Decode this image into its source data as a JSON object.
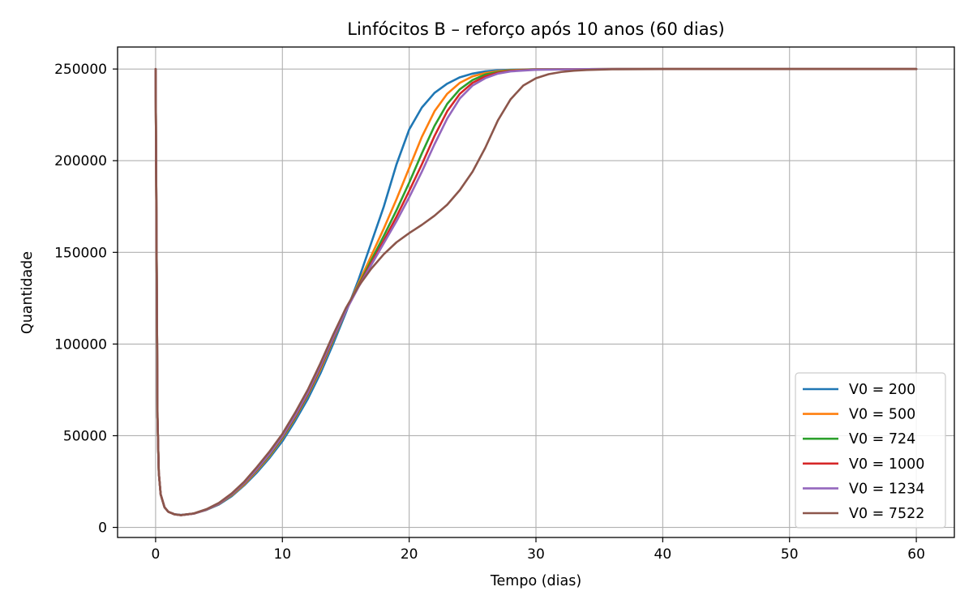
{
  "chart_data": {
    "type": "line",
    "title": "Linfócitos B – reforço após 10 anos (60 dias)",
    "xlabel": "Tempo (dias)",
    "ylabel": "Quantidade",
    "xlim": [
      -3,
      63
    ],
    "ylim": [
      -5500,
      262000
    ],
    "xticks": [
      0,
      10,
      20,
      30,
      40,
      50,
      60
    ],
    "xtick_labels": [
      "0",
      "10",
      "20",
      "30",
      "40",
      "50",
      "60"
    ],
    "yticks": [
      0,
      50000,
      100000,
      150000,
      200000,
      250000
    ],
    "ytick_labels": [
      "0",
      "50000",
      "100000",
      "150000",
      "200000",
      "250000"
    ],
    "grid": true,
    "legend_position": "lower-right",
    "series": [
      {
        "name": "V0 = 200",
        "color": "#1f77b4",
        "points": [
          [
            0,
            250000
          ],
          [
            0.08,
            150000
          ],
          [
            0.15,
            60000
          ],
          [
            0.25,
            30000
          ],
          [
            0.4,
            18000
          ],
          [
            0.7,
            11000
          ],
          [
            1,
            8500
          ],
          [
            1.5,
            7200
          ],
          [
            2,
            6800
          ],
          [
            3,
            7500
          ],
          [
            4,
            9500
          ],
          [
            5,
            12500
          ],
          [
            6,
            17000
          ],
          [
            7,
            23000
          ],
          [
            8,
            30000
          ],
          [
            9,
            38000
          ],
          [
            10,
            47000
          ],
          [
            11,
            58000
          ],
          [
            12,
            70000
          ],
          [
            13,
            84000
          ],
          [
            14,
            100000
          ],
          [
            15,
            117000
          ],
          [
            16,
            135000
          ],
          [
            17,
            155000
          ],
          [
            18,
            175000
          ],
          [
            19,
            198000
          ],
          [
            20,
            217000
          ],
          [
            21,
            229000
          ],
          [
            22,
            237000
          ],
          [
            23,
            242000
          ],
          [
            24,
            245500
          ],
          [
            25,
            247500
          ],
          [
            26,
            248700
          ],
          [
            27,
            249300
          ],
          [
            28,
            249600
          ],
          [
            30,
            249850
          ],
          [
            33,
            249950
          ],
          [
            40,
            250000
          ],
          [
            60,
            250000
          ]
        ]
      },
      {
        "name": "V0 = 500",
        "color": "#ff7f0e",
        "points": [
          [
            0,
            250000
          ],
          [
            0.08,
            150000
          ],
          [
            0.15,
            60000
          ],
          [
            0.25,
            30000
          ],
          [
            0.4,
            18000
          ],
          [
            0.7,
            11000
          ],
          [
            1,
            8500
          ],
          [
            1.5,
            7100
          ],
          [
            2,
            6700
          ],
          [
            3,
            7500
          ],
          [
            4,
            9600
          ],
          [
            5,
            12800
          ],
          [
            6,
            17500
          ],
          [
            7,
            23500
          ],
          [
            8,
            31000
          ],
          [
            9,
            39000
          ],
          [
            10,
            48500
          ],
          [
            11,
            59500
          ],
          [
            12,
            72000
          ],
          [
            13,
            86000
          ],
          [
            14,
            102000
          ],
          [
            15,
            118000
          ],
          [
            16,
            133000
          ],
          [
            17,
            148000
          ],
          [
            18,
            163000
          ],
          [
            19,
            179000
          ],
          [
            20,
            196000
          ],
          [
            21,
            213000
          ],
          [
            22,
            227000
          ],
          [
            23,
            236500
          ],
          [
            24,
            242500
          ],
          [
            25,
            246000
          ],
          [
            26,
            247800
          ],
          [
            27,
            248800
          ],
          [
            28,
            249400
          ],
          [
            30,
            249800
          ],
          [
            34,
            249950
          ],
          [
            40,
            250000
          ],
          [
            60,
            250000
          ]
        ]
      },
      {
        "name": "V0 = 724",
        "color": "#2ca02c",
        "points": [
          [
            0,
            250000
          ],
          [
            0.08,
            150000
          ],
          [
            0.15,
            60000
          ],
          [
            0.25,
            30000
          ],
          [
            0.4,
            18000
          ],
          [
            0.7,
            11000
          ],
          [
            1,
            8500
          ],
          [
            1.5,
            7100
          ],
          [
            2,
            6700
          ],
          [
            3,
            7500
          ],
          [
            4,
            9700
          ],
          [
            5,
            13000
          ],
          [
            6,
            17800
          ],
          [
            7,
            24000
          ],
          [
            8,
            31500
          ],
          [
            9,
            39500
          ],
          [
            10,
            49000
          ],
          [
            11,
            60000
          ],
          [
            12,
            72500
          ],
          [
            13,
            87000
          ],
          [
            14,
            102500
          ],
          [
            15,
            118000
          ],
          [
            16,
            132000
          ],
          [
            17,
            145500
          ],
          [
            18,
            159000
          ],
          [
            19,
            173000
          ],
          [
            20,
            188000
          ],
          [
            21,
            204000
          ],
          [
            22,
            219000
          ],
          [
            23,
            231000
          ],
          [
            24,
            239000
          ],
          [
            25,
            244000
          ],
          [
            26,
            247000
          ],
          [
            27,
            248400
          ],
          [
            28,
            249200
          ],
          [
            30,
            249750
          ],
          [
            34,
            249950
          ],
          [
            40,
            250000
          ],
          [
            60,
            250000
          ]
        ]
      },
      {
        "name": "V0 = 1000",
        "color": "#d62728",
        "points": [
          [
            0,
            250000
          ],
          [
            0.08,
            150000
          ],
          [
            0.15,
            60000
          ],
          [
            0.25,
            30000
          ],
          [
            0.4,
            18000
          ],
          [
            0.7,
            11000
          ],
          [
            1,
            8500
          ],
          [
            1.5,
            7100
          ],
          [
            2,
            6700
          ],
          [
            3,
            7500
          ],
          [
            4,
            9700
          ],
          [
            5,
            13000
          ],
          [
            6,
            18000
          ],
          [
            7,
            24200
          ],
          [
            8,
            31800
          ],
          [
            9,
            40000
          ],
          [
            10,
            49500
          ],
          [
            11,
            60500
          ],
          [
            12,
            73000
          ],
          [
            13,
            87500
          ],
          [
            14,
            103000
          ],
          [
            15,
            118000
          ],
          [
            16,
            131500
          ],
          [
            17,
            144000
          ],
          [
            18,
            156500
          ],
          [
            19,
            169500
          ],
          [
            20,
            183500
          ],
          [
            21,
            198000
          ],
          [
            22,
            213500
          ],
          [
            23,
            227000
          ],
          [
            24,
            236500
          ],
          [
            25,
            242500
          ],
          [
            26,
            246000
          ],
          [
            27,
            248000
          ],
          [
            28,
            249000
          ],
          [
            30,
            249700
          ],
          [
            34,
            249950
          ],
          [
            40,
            250000
          ],
          [
            60,
            250000
          ]
        ]
      },
      {
        "name": "V0 = 1234",
        "color": "#9467bd",
        "points": [
          [
            0,
            250000
          ],
          [
            0.08,
            150000
          ],
          [
            0.15,
            60000
          ],
          [
            0.25,
            30000
          ],
          [
            0.4,
            18000
          ],
          [
            0.7,
            11000
          ],
          [
            1,
            8500
          ],
          [
            1.5,
            7100
          ],
          [
            2,
            6700
          ],
          [
            3,
            7500
          ],
          [
            4,
            9700
          ],
          [
            5,
            13100
          ],
          [
            6,
            18100
          ],
          [
            7,
            24400
          ],
          [
            8,
            32000
          ],
          [
            9,
            40200
          ],
          [
            10,
            49800
          ],
          [
            11,
            61000
          ],
          [
            12,
            73500
          ],
          [
            13,
            88000
          ],
          [
            14,
            103500
          ],
          [
            15,
            118000
          ],
          [
            16,
            131000
          ],
          [
            17,
            143000
          ],
          [
            18,
            155000
          ],
          [
            19,
            167000
          ],
          [
            20,
            180000
          ],
          [
            21,
            194000
          ],
          [
            22,
            209000
          ],
          [
            23,
            223000
          ],
          [
            24,
            234000
          ],
          [
            25,
            241000
          ],
          [
            26,
            245000
          ],
          [
            27,
            247500
          ],
          [
            28,
            248700
          ],
          [
            30,
            249600
          ],
          [
            34,
            249950
          ],
          [
            40,
            250000
          ],
          [
            60,
            250000
          ]
        ]
      },
      {
        "name": "V0 = 7522",
        "color": "#8c564b",
        "points": [
          [
            0,
            250000
          ],
          [
            0.08,
            150000
          ],
          [
            0.15,
            60000
          ],
          [
            0.25,
            30000
          ],
          [
            0.4,
            18000
          ],
          [
            0.7,
            11000
          ],
          [
            1,
            8500
          ],
          [
            1.5,
            7100
          ],
          [
            2,
            6700
          ],
          [
            3,
            7600
          ],
          [
            4,
            9900
          ],
          [
            5,
            13400
          ],
          [
            6,
            18500
          ],
          [
            7,
            25000
          ],
          [
            8,
            33000
          ],
          [
            9,
            41500
          ],
          [
            10,
            51000
          ],
          [
            11,
            62500
          ],
          [
            12,
            75000
          ],
          [
            13,
            89500
          ],
          [
            14,
            105000
          ],
          [
            15,
            119500
          ],
          [
            16,
            131500
          ],
          [
            17,
            141000
          ],
          [
            18,
            149000
          ],
          [
            19,
            155500
          ],
          [
            20,
            160500
          ],
          [
            21,
            165000
          ],
          [
            22,
            170000
          ],
          [
            23,
            176000
          ],
          [
            24,
            184000
          ],
          [
            25,
            194000
          ],
          [
            26,
            207000
          ],
          [
            27,
            222000
          ],
          [
            28,
            233500
          ],
          [
            29,
            241000
          ],
          [
            30,
            245000
          ],
          [
            31,
            247200
          ],
          [
            32,
            248400
          ],
          [
            33,
            249100
          ],
          [
            34,
            249500
          ],
          [
            36,
            249850
          ],
          [
            40,
            249980
          ],
          [
            60,
            250000
          ]
        ]
      }
    ]
  }
}
